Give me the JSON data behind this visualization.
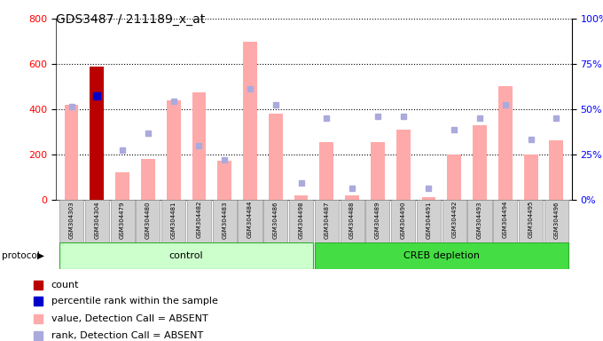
{
  "title": "GDS3487 / 211189_x_at",
  "samples": [
    "GSM304303",
    "GSM304304",
    "GSM304479",
    "GSM304480",
    "GSM304481",
    "GSM304482",
    "GSM304483",
    "GSM304484",
    "GSM304486",
    "GSM304498",
    "GSM304487",
    "GSM304488",
    "GSM304489",
    "GSM304490",
    "GSM304491",
    "GSM304492",
    "GSM304493",
    "GSM304494",
    "GSM304495",
    "GSM304496"
  ],
  "value_absent": [
    420,
    0,
    120,
    180,
    440,
    475,
    170,
    700,
    380,
    20,
    255,
    20,
    255,
    310,
    10,
    200,
    330,
    500,
    200,
    260
  ],
  "rank_absent": [
    410,
    0,
    220,
    295,
    435,
    240,
    175,
    488,
    420,
    75,
    360,
    50,
    370,
    370,
    50,
    310,
    360,
    420,
    265,
    360
  ],
  "count": [
    0,
    590,
    0,
    0,
    0,
    0,
    0,
    0,
    0,
    0,
    0,
    0,
    0,
    0,
    0,
    0,
    0,
    0,
    0,
    0
  ],
  "percentile": [
    0,
    460,
    0,
    0,
    0,
    0,
    0,
    0,
    0,
    0,
    0,
    0,
    0,
    0,
    0,
    0,
    0,
    0,
    0,
    0
  ],
  "control_count": 10,
  "creb_count": 10,
  "ylim_left": [
    0,
    800
  ],
  "ylim_right": [
    0,
    100
  ],
  "yticks_left": [
    0,
    200,
    400,
    600,
    800
  ],
  "yticks_right": [
    0,
    25,
    50,
    75,
    100
  ],
  "color_value_absent": "#ffaaaa",
  "color_rank_absent": "#aaaadd",
  "color_count": "#bb0000",
  "color_percentile": "#0000cc",
  "color_ctrl_bg": "#ccffcc",
  "color_creb_bg": "#44dd44"
}
